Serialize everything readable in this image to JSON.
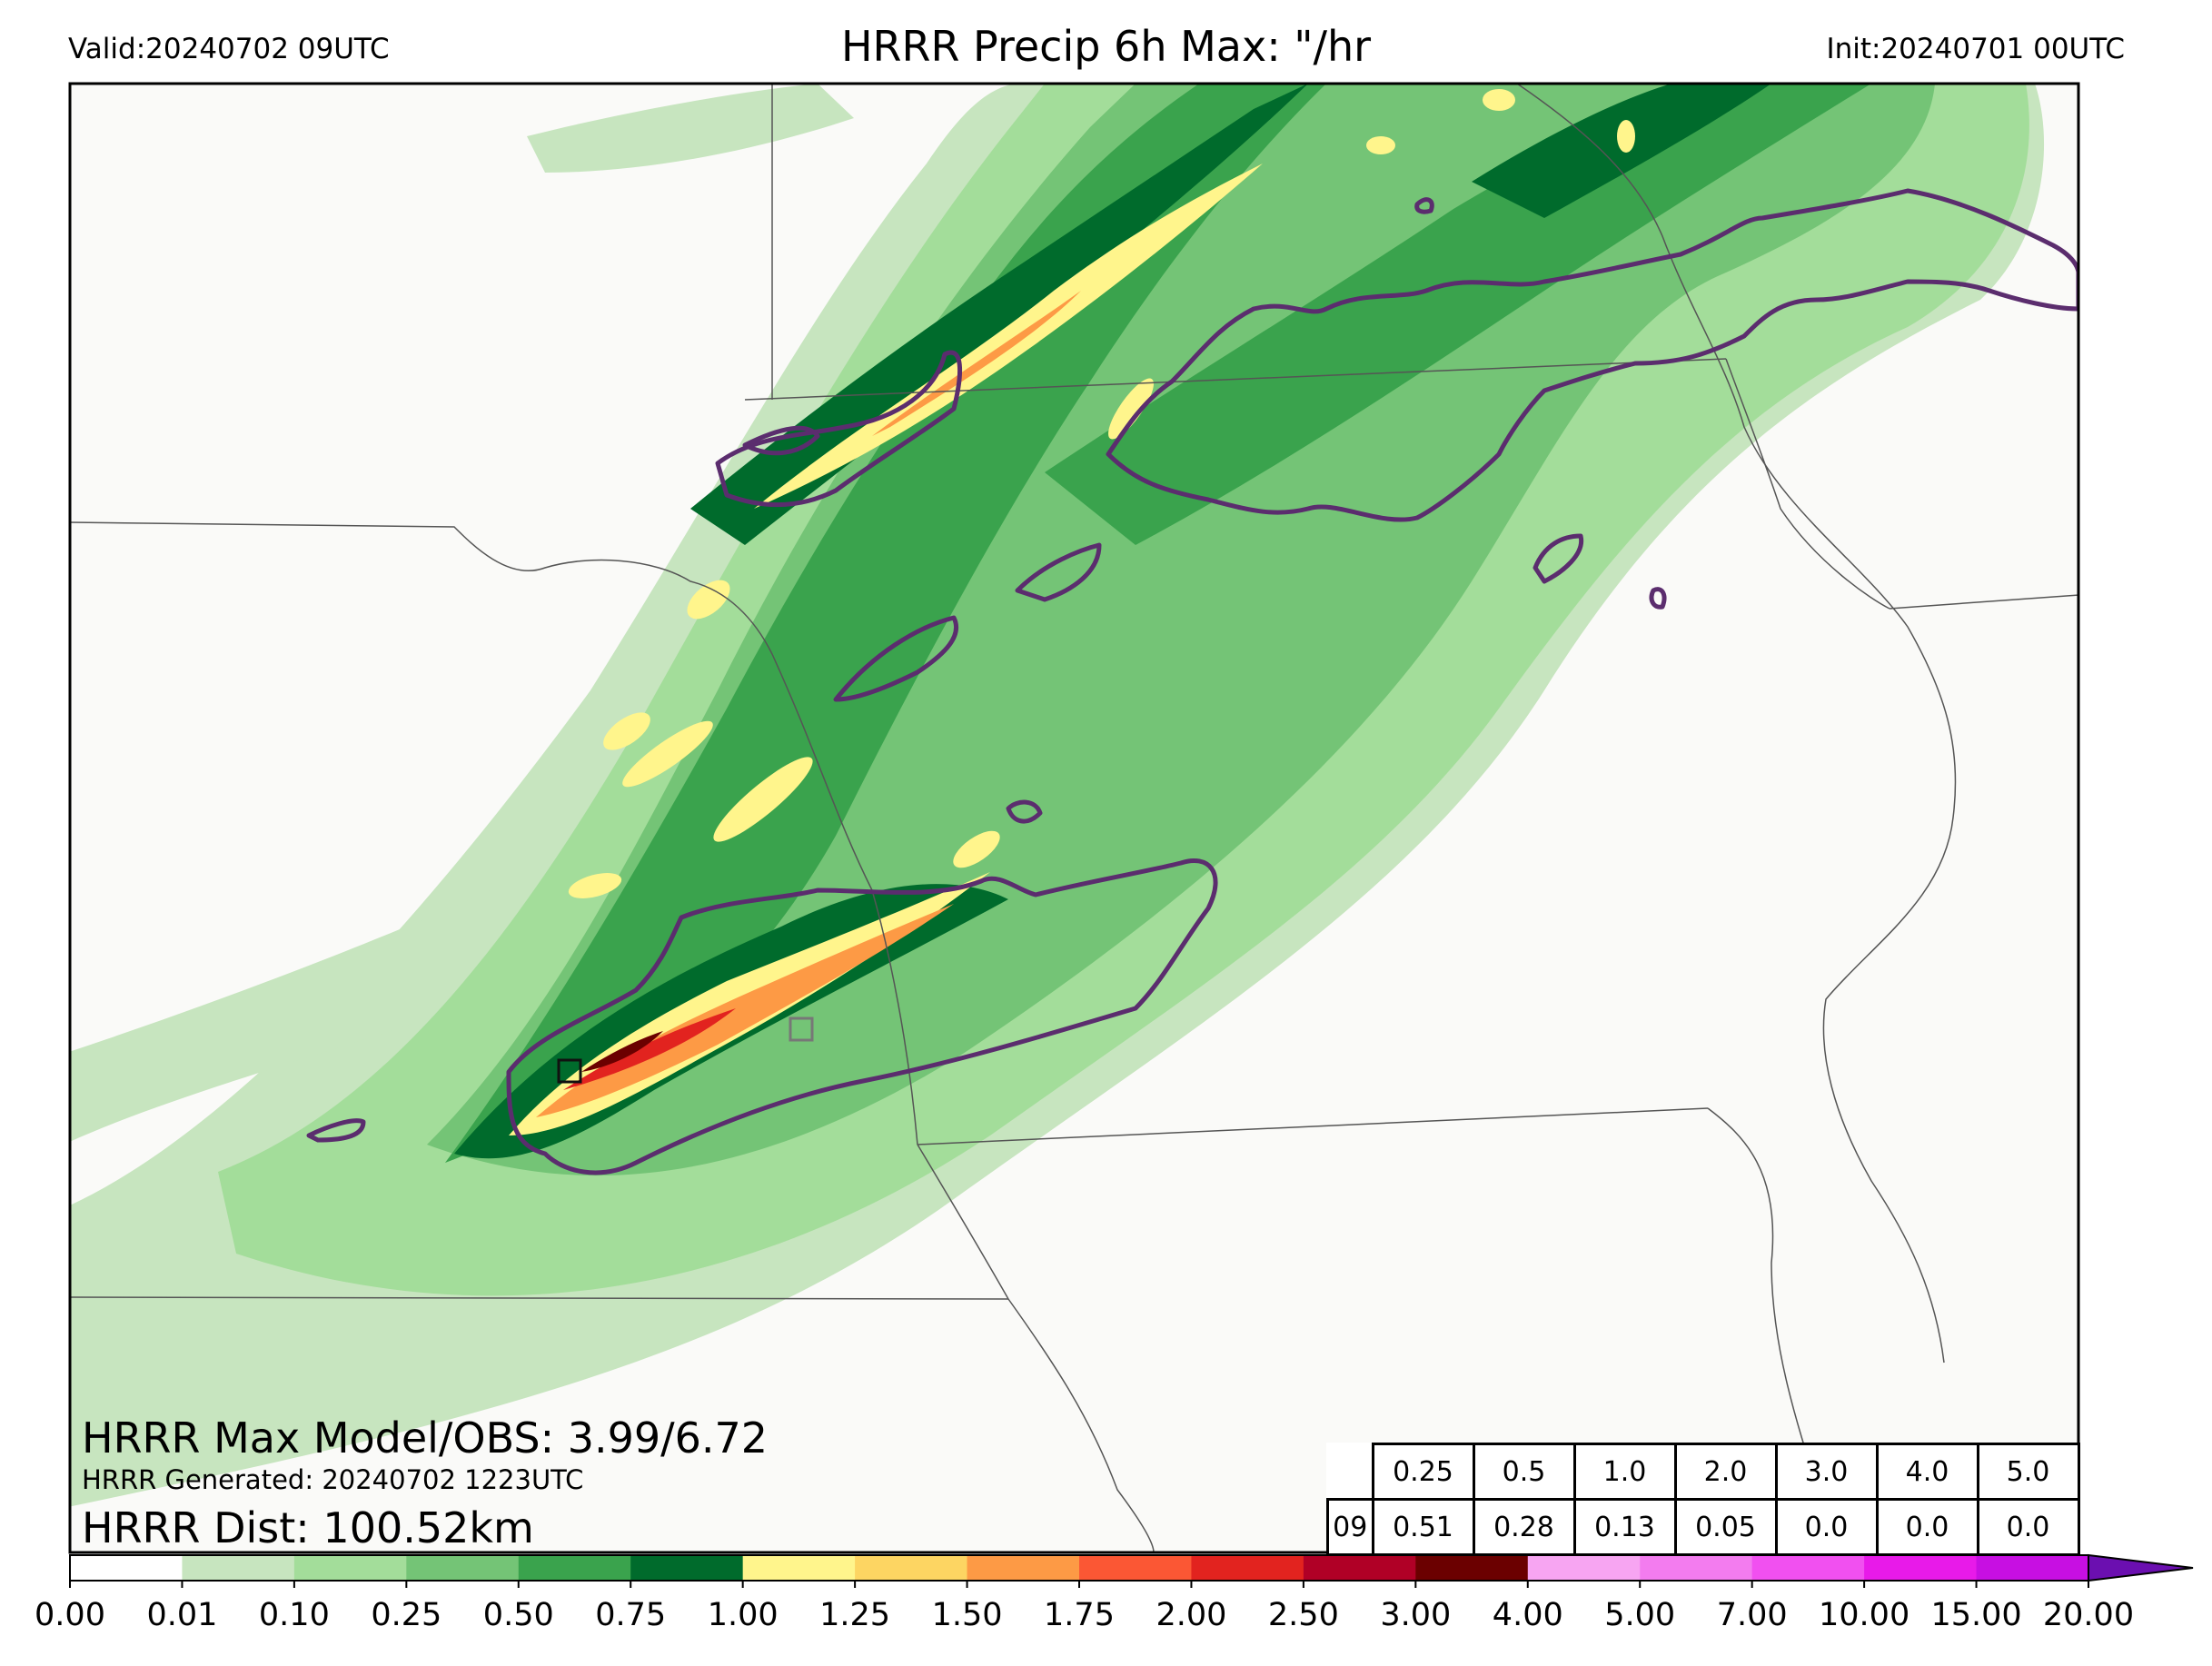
{
  "header": {
    "valid": "Valid:20240702 09UTC",
    "title": "HRRR Precip 6h Max: \"/hr",
    "init": "Init:20240701 00UTC"
  },
  "stats": {
    "max_model_obs": "HRRR Max Model/OBS: 3.99/6.72",
    "generated": "HRRR Generated: 20240702 1223UTC",
    "dist": "HRRR Dist: 100.52km"
  },
  "verification_table": {
    "thresholds": [
      "0.25",
      "0.5",
      "1.0",
      "2.0",
      "3.0",
      "4.0",
      "5.0"
    ],
    "row_label": "09",
    "values": [
      "0.51",
      "0.28",
      "0.13",
      "0.05",
      "0.0",
      "0.0",
      "0.0"
    ]
  },
  "colorbar": {
    "labels": [
      "0.00",
      "0.01",
      "0.10",
      "0.25",
      "0.50",
      "0.75",
      "1.00",
      "1.25",
      "1.50",
      "1.75",
      "2.00",
      "2.50",
      "3.00",
      "4.00",
      "5.00",
      "7.00",
      "10.00",
      "15.00",
      "20.00"
    ],
    "colors": [
      "#ffffff",
      "#c7e5bf",
      "#a3dd9a",
      "#74c476",
      "#3aa34d",
      "#006b2c",
      "#fff58c",
      "#fdd562",
      "#fd9a45",
      "#fb5734",
      "#e2231f",
      "#b00026",
      "#6b0000",
      "#f7a5f2",
      "#f37cef",
      "#f150f0",
      "#e81ae9",
      "#c70fe2",
      "#9a0fd2"
    ],
    "extend_color": "#6b0fb0"
  },
  "colors": {
    "frame": "#000000",
    "contour": "#5b2d6e",
    "land": "#fafaf8",
    "border": "#555555"
  }
}
